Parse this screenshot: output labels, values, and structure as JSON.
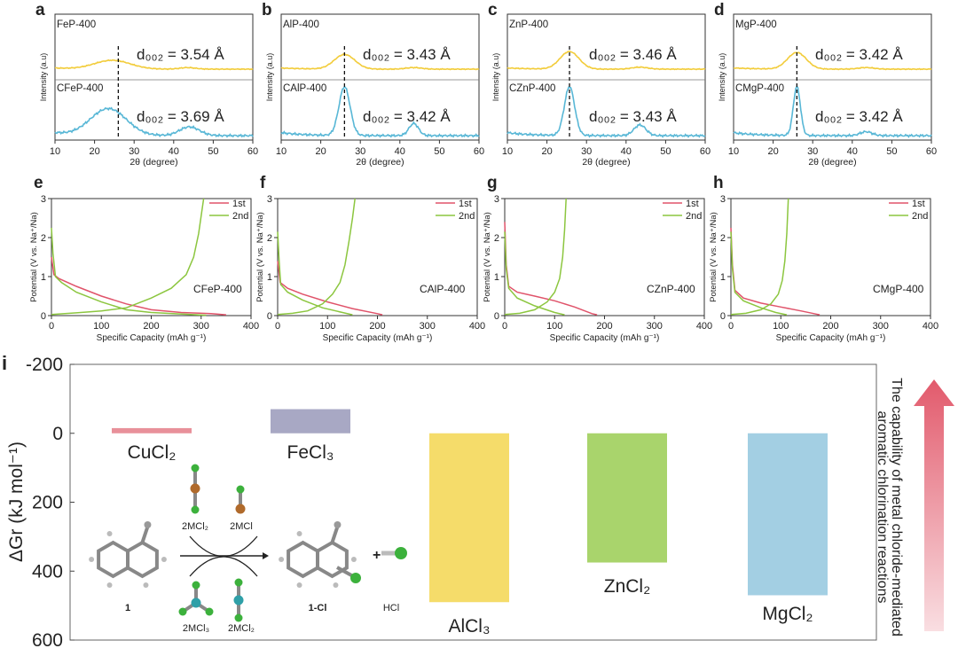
{
  "colors": {
    "yellow": "#f2cc3a",
    "blue": "#58b7d6",
    "red": "#e0536a",
    "green": "#8cc63f",
    "cucl2": "#e8909a",
    "fecl3": "#a8a8c4",
    "alcl3": "#f5dc6a",
    "zncl2": "#a9d46c",
    "mgcl2": "#a3cfe3",
    "arrow": "#e25a6c",
    "axis": "#333333"
  },
  "xrd": {
    "xlabel": "2θ (degree)",
    "ylabel": "Intensity (a.u)",
    "xlim": [
      10,
      60
    ],
    "xticks": [
      10,
      20,
      30,
      40,
      50,
      60
    ],
    "panels": [
      {
        "letter": "a",
        "top_label": "FeP-400",
        "bottom_label": "CFeP-400",
        "top_d": "d₀₀₂ = 3.54 Å",
        "bottom_d": "d₀₀₂ = 3.69 Å",
        "dash_x": 26,
        "top_peaks": [
          [
            24.5,
            0.45,
            4.5
          ],
          [
            43.5,
            0.08,
            2
          ]
        ],
        "bottom_peaks": [
          [
            23.5,
            0.55,
            4.5
          ],
          [
            44,
            0.18,
            2.5
          ]
        ]
      },
      {
        "letter": "b",
        "top_label": "AlP-400",
        "bottom_label": "CAlP-400",
        "top_d": "d₀₀₂ = 3.43 Å",
        "bottom_d": "d₀₀₂ = 3.42 Å",
        "dash_x": 26,
        "top_peaks": [
          [
            26,
            0.75,
            2.6
          ],
          [
            43.5,
            0.08,
            2
          ]
        ],
        "bottom_peaks": [
          [
            26,
            1.0,
            1.4
          ],
          [
            43.5,
            0.25,
            1.2
          ]
        ]
      },
      {
        "letter": "c",
        "top_label": "ZnP-400",
        "bottom_label": "CZnP-400",
        "top_d": "d₀₀₂ = 3.46 Å",
        "bottom_d": "d₀₀₂ = 3.43 Å",
        "dash_x": 25.7,
        "top_peaks": [
          [
            25.7,
            0.9,
            2.4
          ],
          [
            43.5,
            0.1,
            2
          ]
        ],
        "bottom_peaks": [
          [
            25.7,
            1.0,
            1.3
          ],
          [
            43.5,
            0.22,
            1.5
          ]
        ]
      },
      {
        "letter": "d",
        "top_label": "MgP-400",
        "bottom_label": "CMgP-400",
        "top_d": "d₀₀₂ = 3.42 Å",
        "bottom_d": "d₀₀₂ = 3.42 Å",
        "dash_x": 26,
        "top_peaks": [
          [
            26,
            0.85,
            2.4
          ],
          [
            43.5,
            0.08,
            2
          ]
        ],
        "bottom_peaks": [
          [
            26,
            1.0,
            0.9
          ],
          [
            43.5,
            0.08,
            1.5
          ]
        ]
      }
    ]
  },
  "gcd": {
    "xlabel": "Specific Capacity (mAh g⁻¹)",
    "ylabel": "Potential (V vs. Na⁺/Na)",
    "xlim": [
      0,
      400
    ],
    "ylim": [
      0,
      3
    ],
    "xticks": [
      0,
      100,
      200,
      300,
      400
    ],
    "yticks": [
      0,
      1,
      2,
      3
    ],
    "legend": [
      "1st",
      "2nd"
    ],
    "panels": [
      {
        "letter": "e",
        "label": "CFeP-400",
        "first_discharge": [
          [
            0,
            1.5
          ],
          [
            5,
            1.05
          ],
          [
            15,
            0.95
          ],
          [
            50,
            0.75
          ],
          [
            100,
            0.5
          ],
          [
            150,
            0.3
          ],
          [
            200,
            0.15
          ],
          [
            260,
            0.08
          ],
          [
            320,
            0.05
          ],
          [
            350,
            0.02
          ]
        ],
        "second_discharge": [
          [
            0,
            2.25
          ],
          [
            3,
            1.6
          ],
          [
            8,
            1.0
          ],
          [
            20,
            0.85
          ],
          [
            50,
            0.6
          ],
          [
            100,
            0.35
          ],
          [
            150,
            0.15
          ],
          [
            200,
            0.08
          ],
          [
            310,
            0.01
          ]
        ],
        "second_charge": [
          [
            0,
            0.03
          ],
          [
            50,
            0.07
          ],
          [
            100,
            0.12
          ],
          [
            150,
            0.2
          ],
          [
            200,
            0.45
          ],
          [
            240,
            0.7
          ],
          [
            270,
            1.05
          ],
          [
            285,
            1.5
          ],
          [
            295,
            2.1
          ],
          [
            305,
            3.0
          ]
        ]
      },
      {
        "letter": "f",
        "label": "CAlP-400",
        "first_discharge": [
          [
            0,
            1.4
          ],
          [
            5,
            0.85
          ],
          [
            20,
            0.7
          ],
          [
            50,
            0.55
          ],
          [
            100,
            0.35
          ],
          [
            150,
            0.18
          ],
          [
            200,
            0.05
          ],
          [
            210,
            0.02
          ]
        ],
        "second_discharge": [
          [
            0,
            2.15
          ],
          [
            3,
            1.4
          ],
          [
            6,
            0.8
          ],
          [
            20,
            0.6
          ],
          [
            50,
            0.4
          ],
          [
            90,
            0.2
          ],
          [
            130,
            0.08
          ],
          [
            150,
            0.02
          ]
        ],
        "second_charge": [
          [
            0,
            0.03
          ],
          [
            30,
            0.06
          ],
          [
            60,
            0.12
          ],
          [
            90,
            0.3
          ],
          [
            110,
            0.55
          ],
          [
            125,
            0.85
          ],
          [
            135,
            1.3
          ],
          [
            143,
            1.9
          ],
          [
            150,
            2.5
          ],
          [
            155,
            3.0
          ]
        ]
      },
      {
        "letter": "g",
        "label": "CZnP-400",
        "first_discharge": [
          [
            0,
            2.4
          ],
          [
            3,
            1.3
          ],
          [
            8,
            0.75
          ],
          [
            25,
            0.6
          ],
          [
            60,
            0.5
          ],
          [
            100,
            0.38
          ],
          [
            140,
            0.22
          ],
          [
            175,
            0.05
          ],
          [
            185,
            0.02
          ]
        ],
        "second_discharge": [
          [
            0,
            2.15
          ],
          [
            3,
            1.2
          ],
          [
            8,
            0.7
          ],
          [
            25,
            0.45
          ],
          [
            60,
            0.25
          ],
          [
            100,
            0.08
          ],
          [
            120,
            0.02
          ]
        ],
        "second_charge": [
          [
            0,
            0.03
          ],
          [
            30,
            0.06
          ],
          [
            60,
            0.15
          ],
          [
            85,
            0.35
          ],
          [
            100,
            0.6
          ],
          [
            110,
            0.95
          ],
          [
            116,
            1.5
          ],
          [
            120,
            2.2
          ],
          [
            123,
            3.0
          ]
        ]
      },
      {
        "letter": "h",
        "label": "CMgP-400",
        "first_discharge": [
          [
            0,
            2.25
          ],
          [
            3,
            1.3
          ],
          [
            8,
            0.65
          ],
          [
            25,
            0.45
          ],
          [
            60,
            0.32
          ],
          [
            100,
            0.22
          ],
          [
            140,
            0.12
          ],
          [
            170,
            0.04
          ],
          [
            178,
            0.02
          ]
        ],
        "second_discharge": [
          [
            0,
            2.15
          ],
          [
            3,
            1.2
          ],
          [
            8,
            0.6
          ],
          [
            25,
            0.38
          ],
          [
            60,
            0.2
          ],
          [
            90,
            0.08
          ],
          [
            112,
            0.02
          ]
        ],
        "second_charge": [
          [
            0,
            0.03
          ],
          [
            30,
            0.06
          ],
          [
            60,
            0.15
          ],
          [
            80,
            0.3
          ],
          [
            95,
            0.55
          ],
          [
            103,
            0.9
          ],
          [
            108,
            1.4
          ],
          [
            112,
            2.1
          ],
          [
            115,
            3.0
          ]
        ]
      }
    ]
  },
  "chart_data": {
    "type": "bar",
    "panel_letter": "i",
    "ylabel": "ΔGr (kJ mol⁻¹)",
    "ylim": [
      600,
      -200
    ],
    "yticks": [
      -200,
      0,
      200,
      400,
      600
    ],
    "categories": [
      "CuCl₂",
      "FeCl₃",
      "AlCl₃",
      "ZnCl₂",
      "MgCl₂"
    ],
    "values": [
      -15,
      -70,
      490,
      375,
      470
    ],
    "arrow_text_line1": "The capability of metal chloride-mediated",
    "arrow_text_line2": "aromatic chlorination reactions",
    "scheme": {
      "reactant": "1",
      "product": "1-Cl",
      "byproduct": "HCl",
      "plus": "+",
      "top_left": "2MCl₂",
      "top_right": "2MCl",
      "bottom_left": "2MCl₃",
      "bottom_right": "2MCl₂"
    }
  }
}
